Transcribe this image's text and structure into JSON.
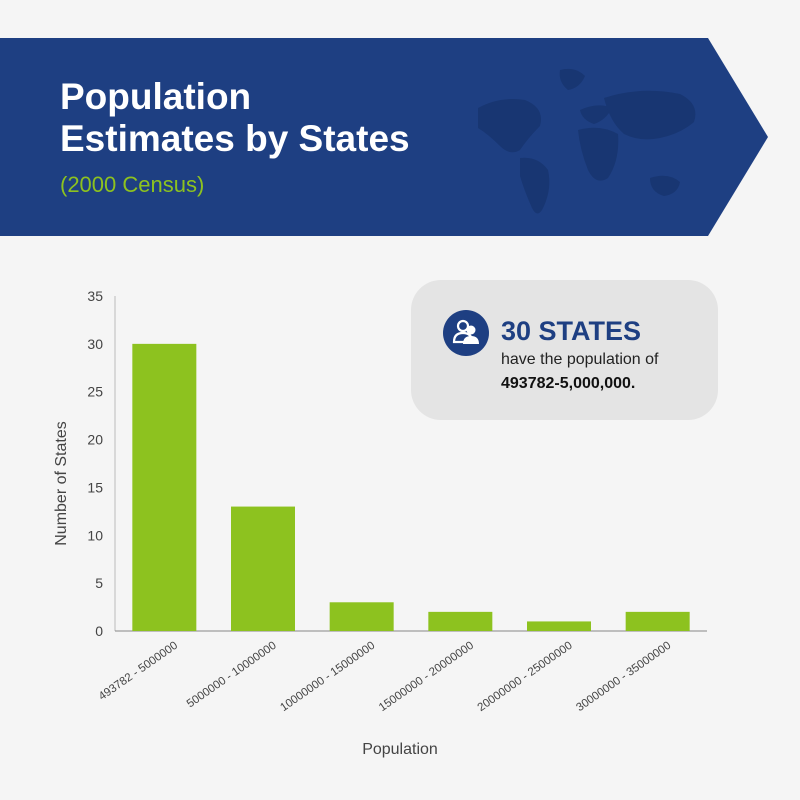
{
  "header": {
    "title_line1": "Population",
    "title_line2": "Estimates by States",
    "subtitle": "(2000 Census)"
  },
  "callout": {
    "headline": "30 STATES",
    "subtext": "have the population of",
    "range": "493782-5,000,000.",
    "icon": "people-icon"
  },
  "colors": {
    "banner": "#1e3f82",
    "accent": "#8dc21f",
    "bar": "#8dc21f",
    "callout_bg": "#e4e4e4"
  },
  "chart_data": {
    "type": "bar",
    "categories": [
      "493782 - 5000000",
      "5000000 - 10000000",
      "10000000 - 15000000",
      "15000000 - 20000000",
      "20000000 - 25000000",
      "30000000 - 35000000"
    ],
    "values": [
      30,
      13,
      3,
      2,
      1,
      2
    ],
    "xlabel": "Population",
    "ylabel": "Number of States",
    "ylim": [
      0,
      35
    ],
    "yticks": [
      0,
      5,
      10,
      15,
      20,
      25,
      30,
      35
    ],
    "grid": false,
    "legend": "none"
  }
}
